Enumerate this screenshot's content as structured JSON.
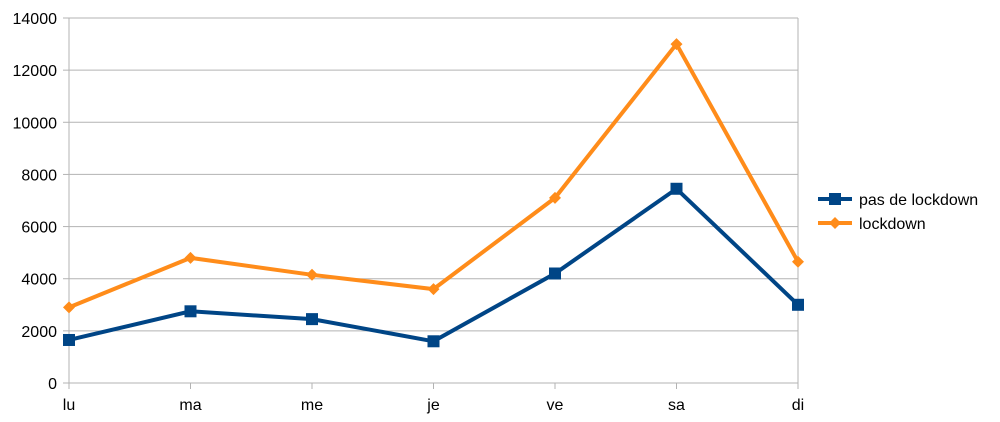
{
  "chart_data": {
    "type": "line",
    "categories": [
      "lu",
      "ma",
      "me",
      "je",
      "ve",
      "sa",
      "di"
    ],
    "ylim": [
      0,
      14000
    ],
    "yticks": [
      0,
      2000,
      4000,
      6000,
      8000,
      10000,
      12000,
      14000
    ],
    "grid": true,
    "legend_position": "right",
    "series": [
      {
        "name": "pas de lockdown",
        "color": "#004586",
        "marker": "square",
        "values": [
          1650,
          2750,
          2450,
          1600,
          4200,
          7450,
          3000
        ]
      },
      {
        "name": "lockdown",
        "color": "#FF8C1A",
        "marker": "diamond",
        "values": [
          2900,
          4800,
          4150,
          3600,
          7100,
          13000,
          4650
        ]
      }
    ],
    "title": "",
    "xlabel": "",
    "ylabel": ""
  }
}
